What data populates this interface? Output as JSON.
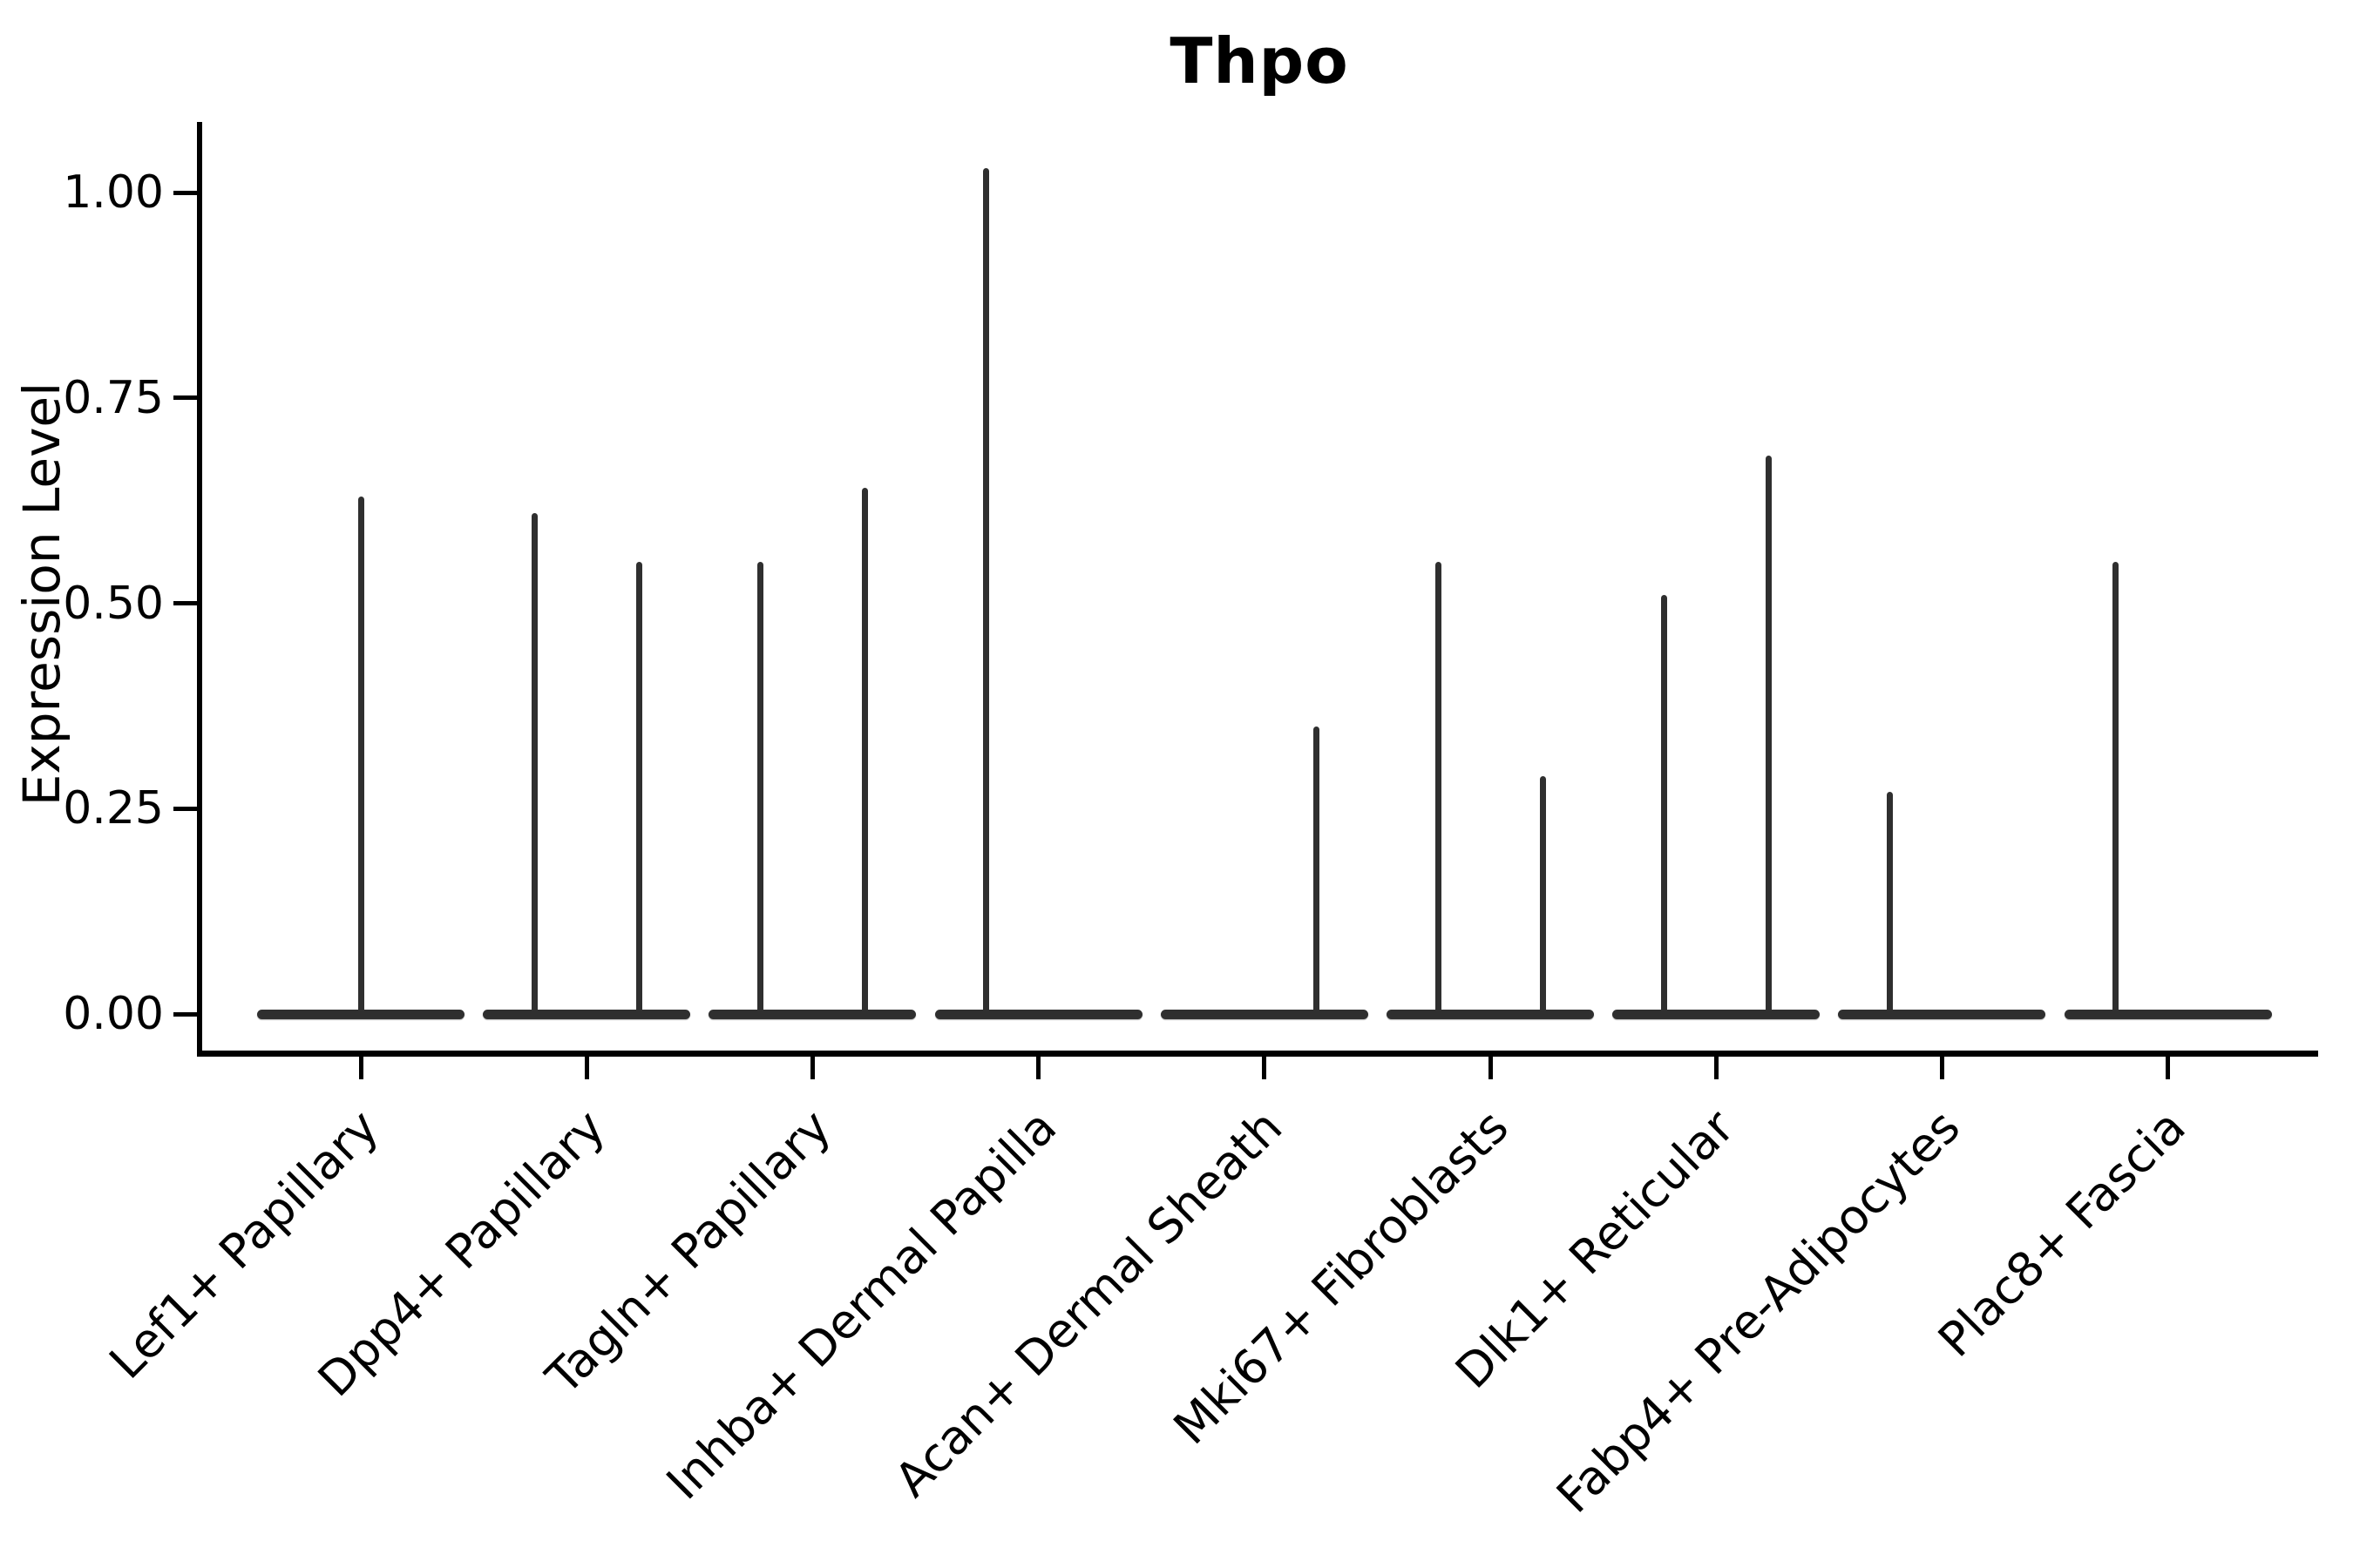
{
  "title": "Thpo",
  "colors": {
    "violin": "#2f2f2f",
    "axis": "#000000",
    "text": "#000000",
    "background": "#ffffff"
  },
  "chart_data": {
    "type": "violin",
    "title": "Thpo",
    "xlabel": "",
    "ylabel": "Expression Level",
    "grid": false,
    "legend": "none",
    "ylim": [
      -0.05,
      1.09
    ],
    "ytick_labels": [
      "1.00",
      "0.75",
      "0.50",
      "0.25",
      "0.00"
    ],
    "ytick_values": [
      1.0,
      0.75,
      0.5,
      0.25,
      0.0
    ],
    "categories": [
      "Lef1+ Papillary",
      "Dpp4+ Papillary",
      "Tagln+ Papillary",
      "Inhba+ Dermal Papilla",
      "Acan+ Dermal Sheath",
      "Mki67+ Fibroblasts",
      "Dlk1+ Reticular",
      "Fabp4+ Pre-Adipocytes",
      "Plac8+ Fascia"
    ],
    "baseline_value": 0.0,
    "violins": [
      {
        "category": "Lef1+ Papillary",
        "groups": [
          {
            "position": "center",
            "peak_value": 0.63
          }
        ]
      },
      {
        "category": "Dpp4+ Papillary",
        "groups": [
          {
            "position": "left",
            "peak_value": 0.61
          },
          {
            "position": "right",
            "peak_value": 0.55
          }
        ]
      },
      {
        "category": "Tagln+ Papillary",
        "groups": [
          {
            "position": "left",
            "peak_value": 0.55
          },
          {
            "position": "right",
            "peak_value": 0.64
          }
        ]
      },
      {
        "category": "Inhba+ Dermal Papilla",
        "groups": [
          {
            "position": "left",
            "peak_value": 1.03
          },
          {
            "position": "right",
            "peak_value": 0.0
          }
        ]
      },
      {
        "category": "Acan+ Dermal Sheath",
        "groups": [
          {
            "position": "left",
            "peak_value": 0.0
          },
          {
            "position": "right",
            "peak_value": 0.35
          }
        ]
      },
      {
        "category": "Mki67+ Fibroblasts",
        "groups": [
          {
            "position": "left",
            "peak_value": 0.55
          },
          {
            "position": "right",
            "peak_value": 0.29
          }
        ]
      },
      {
        "category": "Dlk1+ Reticular",
        "groups": [
          {
            "position": "left",
            "peak_value": 0.51
          },
          {
            "position": "right",
            "peak_value": 0.68
          }
        ]
      },
      {
        "category": "Fabp4+ Pre-Adipocytes",
        "groups": [
          {
            "position": "left",
            "peak_value": 0.27
          },
          {
            "position": "right",
            "peak_value": 0.0
          }
        ]
      },
      {
        "category": "Plac8+ Fascia",
        "groups": [
          {
            "position": "left",
            "peak_value": 0.55
          },
          {
            "position": "right",
            "peak_value": 0.0
          }
        ]
      }
    ]
  }
}
